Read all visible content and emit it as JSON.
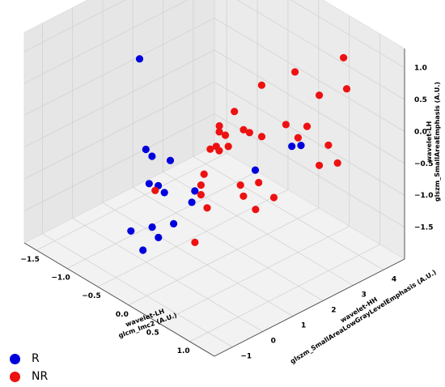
{
  "chart_data": {
    "type": "scatter",
    "projection": "3d",
    "xlabel_lines": [
      "wavelet-LH",
      "glcm_Imc2 (A.U.)"
    ],
    "ylabel_lines": [
      "wavelet-HH",
      "glszm_SmallAreaLowGrayLevelEmphasis (A.U.)"
    ],
    "zlabel_lines": [
      "wavelet-LH",
      "glszm_SmallAreaEmphasis (A.U.)"
    ],
    "x_ticks": [
      "−1.5",
      "−1.0",
      "−0.5",
      "0.0",
      "0.5",
      "1.0"
    ],
    "y_ticks": [
      "−1",
      "0",
      "1",
      "2",
      "3",
      "4"
    ],
    "z_ticks": [
      "−1.5",
      "−1.0",
      "−0.5",
      "0.0",
      "0.5",
      "1.0"
    ],
    "grid": true,
    "legend_position": "bottom-left",
    "series": [
      {
        "name": "R",
        "color": "#0000dd",
        "points": [
          [
            -1.1,
            1.0,
            0.6
          ],
          [
            -0.8,
            0.6,
            -0.55
          ],
          [
            -0.7,
            0.6,
            -0.6
          ],
          [
            -0.6,
            0.3,
            -0.9
          ],
          [
            -0.5,
            0.4,
            -0.9
          ],
          [
            -0.5,
            0.8,
            -0.6
          ],
          [
            -0.4,
            0.4,
            -0.95
          ],
          [
            -0.1,
            0.8,
            -0.85
          ],
          [
            -0.05,
            0.6,
            -0.95
          ],
          [
            -0.2,
            0.3,
            -1.3
          ],
          [
            -0.5,
            0.2,
            -1.5
          ],
          [
            -0.3,
            0.0,
            -1.5
          ],
          [
            -0.65,
            -0.2,
            -1.55
          ],
          [
            -0.7,
            0.3,
            -2.0
          ],
          [
            0.0,
            2.6,
            -0.9
          ],
          [
            0.3,
            3.2,
            -0.5
          ],
          [
            0.45,
            3.2,
            -0.4
          ]
        ]
      },
      {
        "name": "NR",
        "color": "#ee1111",
        "points": [
          [
            0.3,
            0.8,
            0.4
          ],
          [
            0.3,
            2.2,
            0.7
          ],
          [
            0.45,
            3.0,
            0.8
          ],
          [
            0.9,
            3.8,
            0.6
          ],
          [
            0.6,
            3.5,
            0.4
          ],
          [
            0.7,
            4.1,
            0.9
          ],
          [
            0.2,
            1.5,
            0.4
          ],
          [
            0.35,
            1.5,
            0.2
          ],
          [
            0.2,
            1.2,
            0.1
          ],
          [
            0.5,
            2.6,
            0.1
          ],
          [
            0.45,
            3.4,
            -0.15
          ],
          [
            0.2,
            1.0,
            0.2
          ],
          [
            0.25,
            0.8,
            0.05
          ],
          [
            0.15,
            0.8,
            -0.05
          ],
          [
            0.1,
            1.2,
            -0.2
          ],
          [
            0.2,
            1.3,
            -0.1
          ],
          [
            0.25,
            1.9,
            0.0
          ],
          [
            0.4,
            2.0,
            0.0
          ],
          [
            0.55,
            2.9,
            -0.15
          ],
          [
            0.7,
            3.6,
            -0.35
          ],
          [
            0.75,
            3.8,
            -0.65
          ],
          [
            0.6,
            3.5,
            -0.7
          ],
          [
            0.05,
            0.8,
            -0.5
          ],
          [
            0.0,
            0.8,
            -0.7
          ],
          [
            0.0,
            0.8,
            -0.85
          ],
          [
            0.1,
            0.8,
            -1.0
          ],
          [
            0.25,
            1.6,
            -0.75
          ],
          [
            0.35,
            2.0,
            -0.75
          ],
          [
            0.2,
            1.8,
            -1.0
          ],
          [
            0.45,
            2.3,
            -1.0
          ],
          [
            0.3,
            2.0,
            -1.2
          ],
          [
            -0.5,
            0.3,
            -0.95
          ],
          [
            0.0,
            0.6,
            -1.55
          ]
        ]
      }
    ]
  },
  "legend": [
    {
      "label": "R",
      "color": "#0000dd"
    },
    {
      "label": "NR",
      "color": "#ee1111"
    }
  ]
}
